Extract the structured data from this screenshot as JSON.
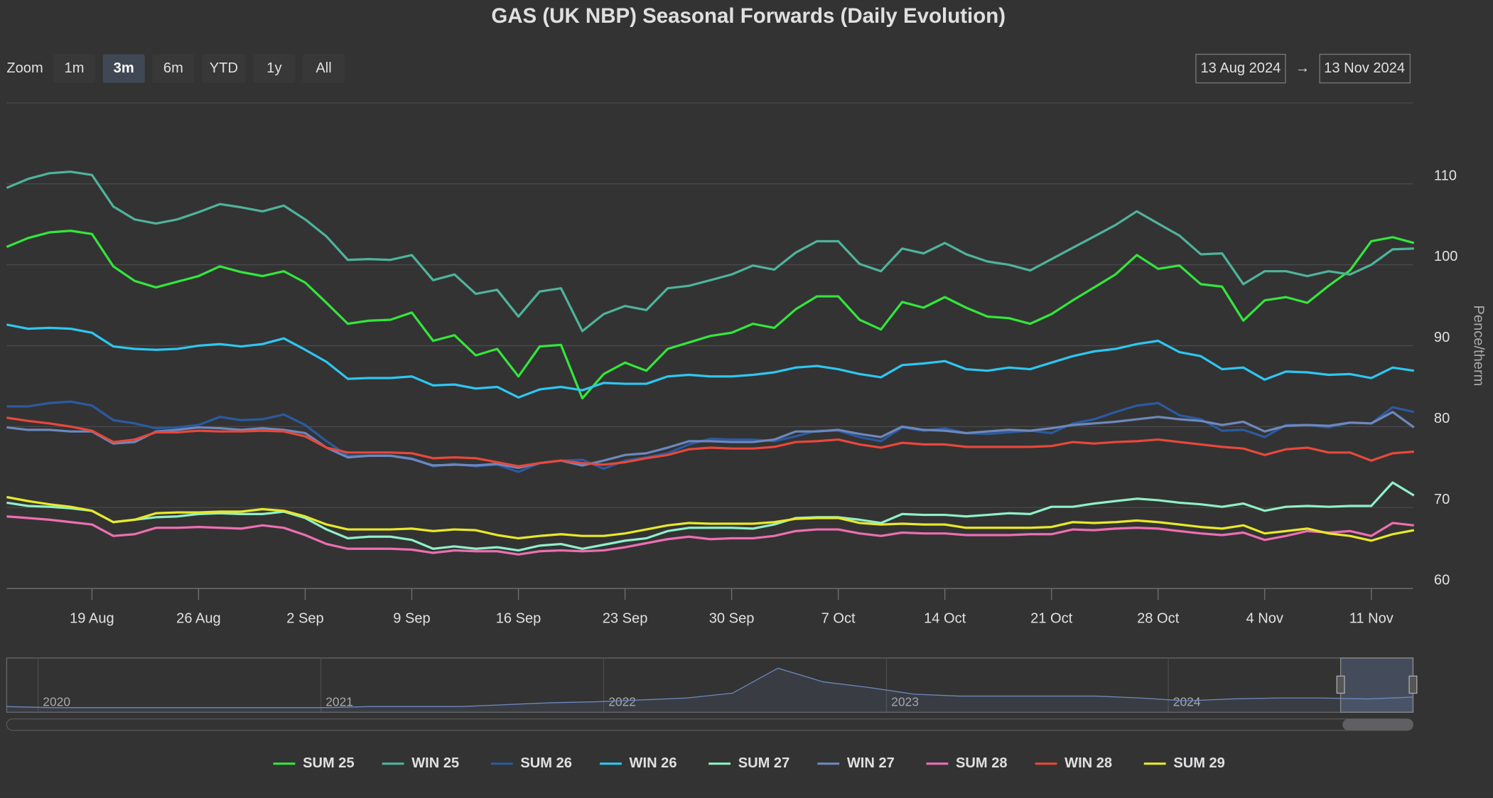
{
  "chart_data": {
    "type": "line",
    "title": "GAS (UK NBP) Seasonal Forwards (Daily Evolution)",
    "y_label": "Pence/therm",
    "grid": true,
    "legend": "bottom",
    "ylim": [
      60,
      120
    ],
    "yticks": [
      60,
      70,
      80,
      90,
      100,
      110
    ],
    "categories": [
      null,
      null,
      null,
      null,
      "19 Aug",
      null,
      null,
      null,
      null,
      "26 Aug",
      null,
      null,
      null,
      null,
      "2 Sep",
      null,
      null,
      null,
      null,
      "9 Sep",
      null,
      null,
      null,
      null,
      "16 Sep",
      null,
      null,
      null,
      null,
      "23 Sep",
      null,
      null,
      null,
      null,
      "30 Sep",
      null,
      null,
      null,
      null,
      "7 Oct",
      null,
      null,
      null,
      null,
      "14 Oct",
      null,
      null,
      null,
      null,
      "21 Oct",
      null,
      null,
      null,
      null,
      "28 Oct",
      null,
      null,
      null,
      null,
      "4 Nov",
      null,
      null,
      null,
      null,
      "11 Nov",
      null,
      null
    ],
    "series": [
      {
        "name": "SUM 25",
        "color": "#33e63c",
        "values": [
          102.2,
          103.3,
          104.0,
          104.2,
          103.8,
          99.8,
          98.0,
          97.2,
          97.9,
          98.6,
          99.8,
          99.1,
          98.6,
          99.2,
          97.8,
          95.3,
          92.7,
          93.1,
          93.2,
          94.1,
          90.6,
          91.3,
          88.8,
          89.6,
          86.2,
          89.9,
          90.1,
          83.5,
          86.5,
          87.9,
          86.9,
          89.6,
          90.4,
          91.2,
          91.6,
          92.7,
          92.2,
          94.5,
          96.1,
          96.1,
          93.2,
          92.0,
          95.4,
          94.7,
          96.0,
          94.7,
          93.6,
          93.4,
          92.7,
          93.9,
          95.6,
          97.2,
          98.8,
          101.2,
          99.5,
          99.9,
          97.6,
          97.3,
          93.1,
          95.6,
          96.0,
          95.3,
          97.4,
          99.3,
          102.9,
          103.4,
          102.7
        ]
      },
      {
        "name": "WIN 25",
        "color": "#4fb39a",
        "values": [
          109.5,
          110.6,
          111.3,
          111.5,
          111.1,
          107.2,
          105.6,
          105.1,
          105.6,
          106.5,
          107.5,
          107.1,
          106.6,
          107.3,
          105.6,
          103.5,
          100.6,
          100.7,
          100.6,
          101.2,
          98.1,
          98.8,
          96.4,
          96.9,
          93.6,
          96.7,
          97.1,
          91.8,
          93.9,
          94.9,
          94.4,
          97.1,
          97.4,
          98.1,
          98.8,
          99.9,
          99.4,
          101.5,
          102.9,
          102.9,
          100.1,
          99.2,
          102.0,
          101.4,
          102.7,
          101.3,
          100.4,
          100.0,
          99.3,
          100.7,
          102.1,
          103.5,
          104.9,
          106.6,
          105.1,
          103.6,
          101.3,
          101.4,
          97.6,
          99.2,
          99.2,
          98.6,
          99.2,
          98.8,
          100.0,
          101.9,
          102.0
        ]
      },
      {
        "name": "SUM 26",
        "color": "#2b5aa0",
        "values": [
          82.5,
          82.5,
          82.9,
          83.1,
          82.6,
          80.8,
          80.4,
          79.8,
          79.9,
          80.2,
          81.2,
          80.8,
          80.9,
          81.5,
          80.2,
          78.2,
          76.4,
          76.4,
          76.4,
          76.1,
          75.1,
          75.4,
          75.1,
          75.3,
          74.4,
          75.5,
          75.8,
          75.9,
          74.8,
          75.8,
          76.2,
          76.7,
          77.8,
          78.5,
          78.4,
          78.4,
          78.2,
          78.8,
          79.5,
          79.5,
          78.7,
          78.2,
          79.9,
          79.5,
          79.8,
          79.2,
          79.1,
          79.3,
          79.5,
          79.2,
          80.4,
          80.9,
          81.8,
          82.6,
          82.9,
          81.4,
          80.9,
          79.5,
          79.6,
          78.7,
          80.2,
          80.2,
          79.9,
          80.5,
          80.4,
          82.4,
          81.8
        ]
      },
      {
        "name": "WIN 26",
        "color": "#2ec6f0",
        "values": [
          92.6,
          92.1,
          92.2,
          92.1,
          91.6,
          89.9,
          89.6,
          89.5,
          89.6,
          90.0,
          90.2,
          89.9,
          90.2,
          90.9,
          89.5,
          88.0,
          85.9,
          86.0,
          86.0,
          86.2,
          85.1,
          85.2,
          84.7,
          84.9,
          83.6,
          84.6,
          84.9,
          84.5,
          85.4,
          85.3,
          85.3,
          86.2,
          86.4,
          86.2,
          86.2,
          86.4,
          86.7,
          87.3,
          87.5,
          87.1,
          86.5,
          86.1,
          87.6,
          87.8,
          88.1,
          87.1,
          86.9,
          87.3,
          87.1,
          87.9,
          88.7,
          89.3,
          89.6,
          90.2,
          90.6,
          89.2,
          88.7,
          87.1,
          87.3,
          85.8,
          86.8,
          86.7,
          86.4,
          86.5,
          86.0,
          87.3,
          86.9
        ]
      },
      {
        "name": "SUM 27",
        "color": "#8ff0c8",
        "values": [
          70.6,
          70.2,
          70.1,
          69.9,
          69.6,
          68.2,
          68.5,
          68.8,
          68.9,
          69.2,
          69.3,
          69.2,
          69.2,
          69.5,
          68.7,
          67.3,
          66.2,
          66.4,
          66.4,
          66.0,
          64.9,
          65.2,
          64.9,
          65.1,
          64.7,
          65.3,
          65.5,
          64.9,
          65.4,
          65.9,
          66.2,
          67.1,
          67.5,
          67.5,
          67.5,
          67.4,
          67.9,
          68.7,
          68.8,
          68.8,
          68.5,
          68.1,
          69.2,
          69.1,
          69.1,
          68.9,
          69.1,
          69.3,
          69.2,
          70.1,
          70.1,
          70.5,
          70.8,
          71.1,
          70.9,
          70.6,
          70.4,
          70.1,
          70.5,
          69.6,
          70.1,
          70.2,
          70.1,
          70.2,
          70.2,
          73.1,
          71.5
        ]
      },
      {
        "name": "WIN 27",
        "color": "#6d88bd",
        "values": [
          79.9,
          79.6,
          79.6,
          79.4,
          79.4,
          77.9,
          78.1,
          79.4,
          79.6,
          79.9,
          79.8,
          79.6,
          79.8,
          79.6,
          79.2,
          77.4,
          76.2,
          76.4,
          76.4,
          76.0,
          75.2,
          75.3,
          75.2,
          75.4,
          74.9,
          75.5,
          75.8,
          75.2,
          75.8,
          76.5,
          76.7,
          77.4,
          78.2,
          78.2,
          78.1,
          78.1,
          78.4,
          79.4,
          79.4,
          79.6,
          79.1,
          78.7,
          80.0,
          79.6,
          79.5,
          79.2,
          79.4,
          79.6,
          79.5,
          79.8,
          80.2,
          80.4,
          80.6,
          80.9,
          81.2,
          80.9,
          80.7,
          80.2,
          80.6,
          79.4,
          80.1,
          80.2,
          80.1,
          80.5,
          80.4,
          81.8,
          79.9
        ]
      },
      {
        "name": "SUM 28",
        "color": "#ec6fb2",
        "values": [
          68.9,
          68.7,
          68.5,
          68.2,
          67.9,
          66.5,
          66.7,
          67.5,
          67.5,
          67.6,
          67.5,
          67.4,
          67.8,
          67.5,
          66.6,
          65.5,
          64.9,
          64.9,
          64.9,
          64.8,
          64.4,
          64.7,
          64.6,
          64.6,
          64.2,
          64.6,
          64.7,
          64.6,
          64.7,
          65.1,
          65.6,
          66.1,
          66.4,
          66.1,
          66.2,
          66.2,
          66.5,
          67.1,
          67.3,
          67.3,
          66.8,
          66.5,
          66.9,
          66.8,
          66.8,
          66.6,
          66.6,
          66.6,
          66.7,
          66.7,
          67.3,
          67.2,
          67.4,
          67.5,
          67.4,
          67.1,
          66.8,
          66.6,
          66.9,
          66.0,
          66.5,
          67.1,
          66.9,
          67.1,
          66.5,
          68.1,
          67.8
        ]
      },
      {
        "name": "WIN 28",
        "color": "#e8483b",
        "values": [
          81.1,
          80.7,
          80.4,
          80.0,
          79.5,
          78.1,
          78.4,
          79.3,
          79.3,
          79.5,
          79.4,
          79.4,
          79.5,
          79.4,
          78.8,
          77.4,
          76.8,
          76.8,
          76.8,
          76.7,
          76.1,
          76.2,
          76.1,
          75.6,
          75.1,
          75.5,
          75.8,
          75.5,
          75.3,
          75.6,
          76.1,
          76.5,
          77.2,
          77.4,
          77.3,
          77.3,
          77.5,
          78.1,
          78.2,
          78.4,
          77.8,
          77.4,
          78.0,
          77.8,
          77.8,
          77.5,
          77.5,
          77.5,
          77.5,
          77.6,
          78.1,
          77.9,
          78.1,
          78.2,
          78.4,
          78.1,
          77.8,
          77.5,
          77.3,
          76.5,
          77.2,
          77.4,
          76.8,
          76.8,
          75.8,
          76.7,
          76.9
        ]
      },
      {
        "name": "SUM 29",
        "color": "#e8e82a",
        "values": [
          71.3,
          70.8,
          70.4,
          70.1,
          69.6,
          68.2,
          68.5,
          69.3,
          69.4,
          69.4,
          69.5,
          69.5,
          69.8,
          69.6,
          68.9,
          67.9,
          67.3,
          67.3,
          67.3,
          67.4,
          67.1,
          67.3,
          67.2,
          66.6,
          66.2,
          66.5,
          66.7,
          66.5,
          66.5,
          66.8,
          67.3,
          67.8,
          68.1,
          68.0,
          68.0,
          68.0,
          68.2,
          68.6,
          68.7,
          68.7,
          68.1,
          67.9,
          68.0,
          67.9,
          67.9,
          67.5,
          67.5,
          67.5,
          67.5,
          67.6,
          68.2,
          68.1,
          68.2,
          68.4,
          68.2,
          67.9,
          67.6,
          67.4,
          67.8,
          66.8,
          67.1,
          67.4,
          66.8,
          66.5,
          65.9,
          66.7,
          67.2
        ]
      }
    ]
  },
  "range_selector": {
    "label": "Zoom",
    "buttons": [
      "1m",
      "3m",
      "6m",
      "YTD",
      "1y",
      "All"
    ],
    "selected": 1,
    "from": "13 Aug 2024",
    "separator": "→",
    "to": "13 Nov 2024"
  },
  "navigator": {
    "labels": [
      "2020",
      "2021",
      "2022",
      "2023",
      "2024"
    ],
    "ylim": [
      0,
      350
    ],
    "color": "#6d88bd",
    "values": [
      39,
      32,
      32,
      32,
      32,
      32,
      32,
      32,
      39,
      39,
      39,
      52,
      65,
      71,
      84,
      97,
      130,
      300,
      207,
      169,
      123,
      110,
      110,
      110,
      110,
      97,
      78,
      91,
      97,
      97,
      91,
      104
    ]
  }
}
